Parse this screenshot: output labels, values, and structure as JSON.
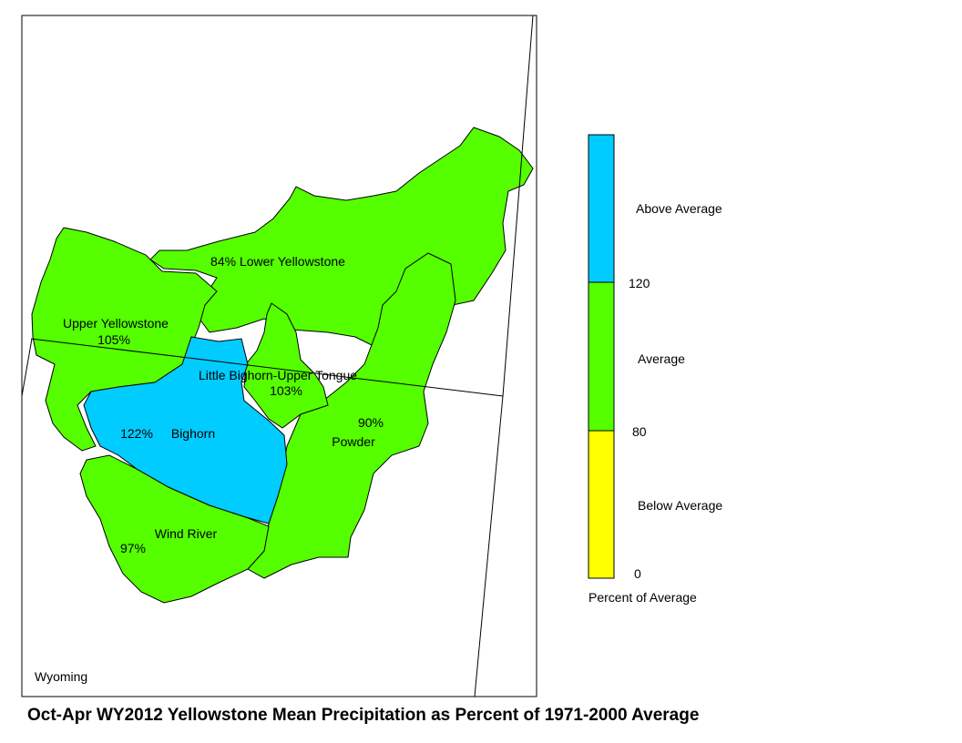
{
  "title": "Oct-Apr WY2012 Yellowstone Mean Precipitation as Percent of 1971-2000 Average",
  "map": {
    "state_label": "Wyoming",
    "basins": [
      {
        "name": "Lower Yellowstone",
        "percent": "84%",
        "label": "84% Lower Yellowstone",
        "color": "#55ff00",
        "category": "Average"
      },
      {
        "name": "Upper Yellowstone",
        "percent": "105%",
        "color": "#55ff00",
        "category": "Average"
      },
      {
        "name": "Little Bighorn-Upper Tongue",
        "percent": "103%",
        "color": "#55ff00",
        "category": "Average"
      },
      {
        "name": "Bighorn",
        "percent": "122%",
        "color": "#00ccff",
        "category": "Above Average"
      },
      {
        "name": "Powder",
        "percent": "90%",
        "color": "#55ff00",
        "category": "Average"
      },
      {
        "name": "Wind River",
        "percent": "97%",
        "color": "#55ff00",
        "category": "Average"
      }
    ]
  },
  "legend": {
    "title": "Percent of Average",
    "categories": [
      {
        "label": "Above Average",
        "color": "#00ccff"
      },
      {
        "label": "Average",
        "color": "#55ff00"
      },
      {
        "label": "Below Average",
        "color": "#ffff00"
      }
    ],
    "breaks": [
      "120",
      "80",
      "0"
    ]
  }
}
